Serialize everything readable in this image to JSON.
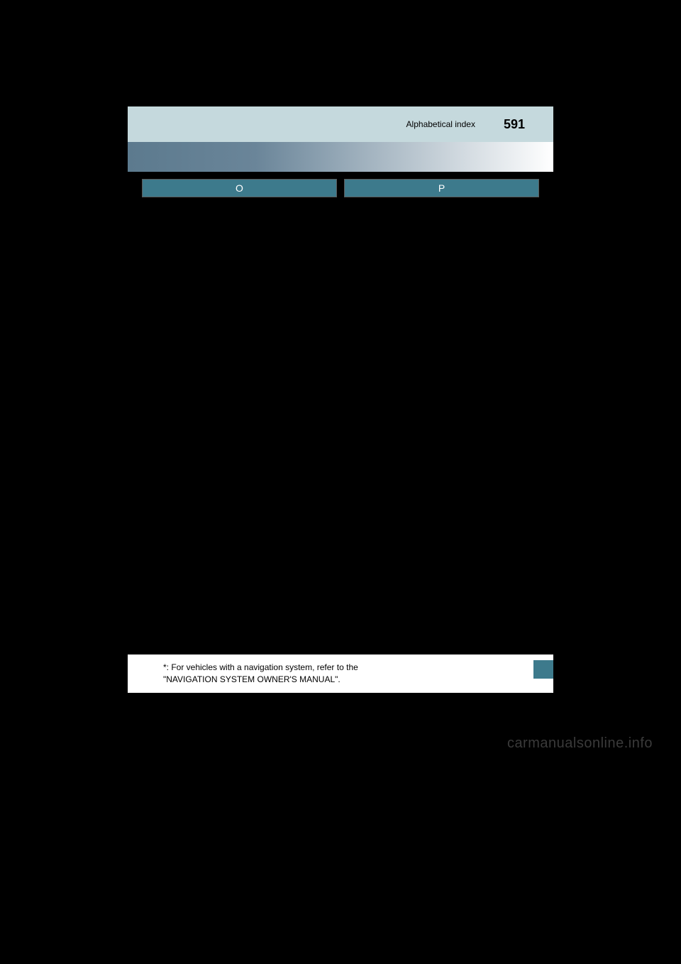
{
  "header": {
    "title": "Alphabetical index",
    "page_number": "591"
  },
  "sections": {
    "left": {
      "letter": "O"
    },
    "right": {
      "letter": "P"
    }
  },
  "footnote": {
    "text_line1": "*: For vehicles with a navigation system, refer to the",
    "text_line2": "\"NAVIGATION SYSTEM OWNER'S MANUAL\"."
  },
  "watermark": "carmanualsonline.info",
  "colors": {
    "header_bg": "#c5d9dd",
    "section_bg": "#3d7a8c",
    "gradient_start": "#5c7a8e",
    "gradient_end": "#ffffff",
    "page_bg": "#000000",
    "text_light": "#ffffff",
    "text_dark": "#000000"
  }
}
